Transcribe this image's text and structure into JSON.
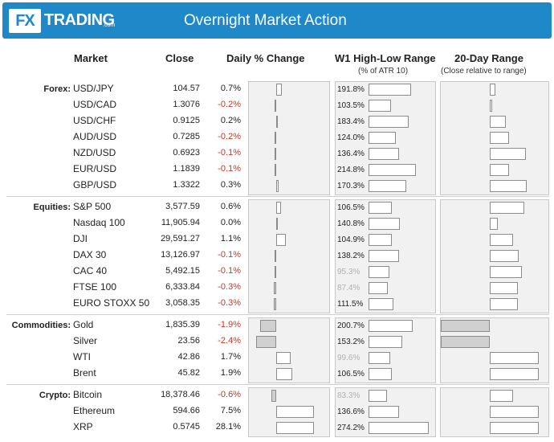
{
  "header": {
    "logo_mark": "FX",
    "logo_text": "TRADING",
    "logo_suffix": ".com",
    "title": "Overnight Market Action"
  },
  "columns": {
    "market": "Market",
    "close": "Close",
    "change": "Daily % Change",
    "w1": "W1 High-Low Range",
    "w1_sub": "(% of ATR 10)",
    "r20": "20-Day Range",
    "r20_sub": "(Close relative to range)"
  },
  "groups": [
    {
      "label": "Forex:",
      "rows": [
        {
          "market": "USD/JPY",
          "close": "104.57",
          "change": "0.7%",
          "change_value": 0.7,
          "w1": "191.8%",
          "w1_value": 191.8,
          "w1_faded": false,
          "r20_value": 0.12
        },
        {
          "market": "USD/CAD",
          "close": "1.3076",
          "change": "-0.2%",
          "change_value": -0.2,
          "w1": "103.5%",
          "w1_value": 103.5,
          "w1_faded": false,
          "r20_value": 0.05
        },
        {
          "market": "USD/CHF",
          "close": "0.9125",
          "change": "0.2%",
          "change_value": 0.2,
          "w1": "183.4%",
          "w1_value": 183.4,
          "w1_faded": false,
          "r20_value": 0.32
        },
        {
          "market": "AUD/USD",
          "close": "0.7285",
          "change": "-0.2%",
          "change_value": -0.2,
          "w1": "124.0%",
          "w1_value": 124.0,
          "w1_faded": false,
          "r20_value": 0.4
        },
        {
          "market": "NZD/USD",
          "close": "0.6923",
          "change": "-0.1%",
          "change_value": -0.1,
          "w1": "136.4%",
          "w1_value": 136.4,
          "w1_faded": false,
          "r20_value": 0.74
        },
        {
          "market": "EUR/USD",
          "close": "1.1839",
          "change": "-0.1%",
          "change_value": -0.1,
          "w1": "214.8%",
          "w1_value": 214.8,
          "w1_faded": false,
          "r20_value": 0.4
        },
        {
          "market": "GBP/USD",
          "close": "1.3322",
          "change": "0.3%",
          "change_value": 0.3,
          "w1": "170.3%",
          "w1_value": 170.3,
          "w1_faded": false,
          "r20_value": 0.76
        }
      ]
    },
    {
      "label": "Equities:",
      "rows": [
        {
          "market": "S&P 500",
          "close": "3,577.59",
          "change": "0.6%",
          "change_value": 0.6,
          "w1": "106.5%",
          "w1_value": 106.5,
          "w1_faded": false,
          "r20_value": 0.7
        },
        {
          "market": "Nasdaq 100",
          "close": "11,905.94",
          "change": "0.0%",
          "change_value": 0.0,
          "w1": "140.8%",
          "w1_value": 140.8,
          "w1_faded": false,
          "r20_value": 0.16
        },
        {
          "market": "DJI",
          "close": "29,591.27",
          "change": "1.1%",
          "change_value": 1.1,
          "w1": "104.9%",
          "w1_value": 104.9,
          "w1_faded": false,
          "r20_value": 0.48
        },
        {
          "market": "DAX 30",
          "close": "13,126.97",
          "change": "-0.1%",
          "change_value": -0.1,
          "w1": "138.2%",
          "w1_value": 138.2,
          "w1_faded": false,
          "r20_value": 0.59
        },
        {
          "market": "CAC 40",
          "close": "5,492.15",
          "change": "-0.1%",
          "change_value": -0.1,
          "w1": "95.3%",
          "w1_value": 95.3,
          "w1_faded": true,
          "r20_value": 0.65
        },
        {
          "market": "FTSE 100",
          "close": "6,333.84",
          "change": "-0.3%",
          "change_value": -0.3,
          "w1": "87.4%",
          "w1_value": 87.4,
          "w1_faded": true,
          "r20_value": 0.57
        },
        {
          "market": "EURO STOXX 50",
          "close": "3,058.35",
          "change": "-0.3%",
          "change_value": -0.3,
          "w1": "111.5%",
          "w1_value": 111.5,
          "w1_faded": false,
          "r20_value": 0.58
        }
      ]
    },
    {
      "label": "Commodities:",
      "rows": [
        {
          "market": "Gold",
          "close": "1,835.39",
          "change": "-1.9%",
          "change_value": -1.9,
          "w1": "200.7%",
          "w1_value": 200.7,
          "w1_faded": false,
          "r20_value": -1.0
        },
        {
          "market": "Silver",
          "close": "23.56",
          "change": "-2.4%",
          "change_value": -2.4,
          "w1": "153.2%",
          "w1_value": 153.2,
          "w1_faded": false,
          "r20_value": -1.0
        },
        {
          "market": "WTI",
          "close": "42.86",
          "change": "1.7%",
          "change_value": 1.7,
          "w1": "99.6%",
          "w1_value": 99.6,
          "w1_faded": true,
          "r20_value": 1.0
        },
        {
          "market": "Brent",
          "close": "45.82",
          "change": "1.9%",
          "change_value": 1.9,
          "w1": "106.5%",
          "w1_value": 106.5,
          "w1_faded": false,
          "r20_value": 1.0
        }
      ]
    },
    {
      "label": "Crypto:",
      "rows": [
        {
          "market": "Bitcoin",
          "close": "18,378.46",
          "change": "-0.6%",
          "change_value": -0.6,
          "w1": "83.3%",
          "w1_value": 83.3,
          "w1_faded": true,
          "r20_value": 0.47
        },
        {
          "market": "Ethereum",
          "close": "594.66",
          "change": "7.5%",
          "change_value": 7.5,
          "w1": "136.6%",
          "w1_value": 136.6,
          "w1_faded": false,
          "r20_value": 1.0
        },
        {
          "market": "XRP",
          "close": "0.5745",
          "change": "28.1%",
          "change_value": 28.1,
          "w1": "274.2%",
          "w1_value": 274.2,
          "w1_faded": false,
          "r20_value": 1.0
        }
      ]
    }
  ]
}
